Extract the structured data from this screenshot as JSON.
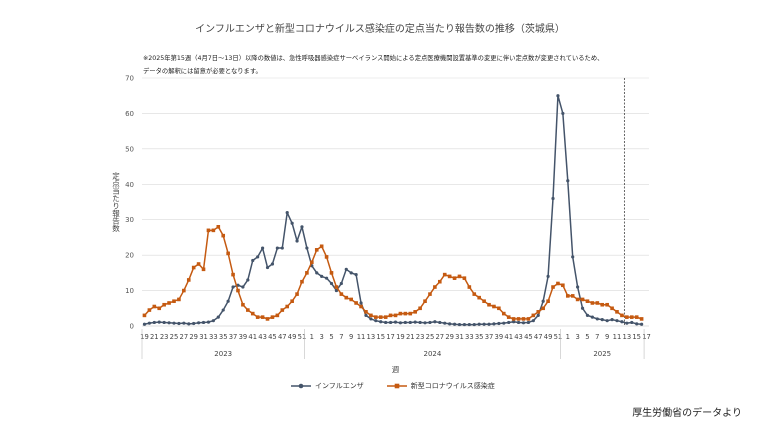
{
  "title": "インフルエンザと新型コロナウイルス感染症の定点当たり報告数の推移（茨城県）",
  "notes": [
    "※2025年第15週（4月7日〜13日）以降の数値は、急性呼吸器感染症サーベイランス開始による定点医療機関設置基準の変更に伴い定点数が変更されているため、",
    "データの解釈には留意が必要となります。"
  ],
  "source": "厚生労働省のデータより",
  "colors": {
    "influenza": "#44546a",
    "covid": "#c55a11",
    "grid": "#d9d9d9",
    "marker_line": "#404040"
  },
  "chart_data": {
    "type": "line",
    "title": "インフルエンザと新型コロナウイルス感染症の定点当たり報告数の推移（茨城県）",
    "xlabel": "週",
    "ylabel": "定点当たり報告数",
    "ylim": [
      0,
      70
    ],
    "yticks": [
      0,
      10,
      20,
      30,
      40,
      50,
      60,
      70
    ],
    "grid": true,
    "legend_position": "bottom",
    "year_labels": [
      {
        "label": "2023",
        "start": 0,
        "end": 32
      },
      {
        "label": "2024",
        "start": 33,
        "end": 84
      },
      {
        "label": "2025",
        "start": 85,
        "end": 101
      }
    ],
    "vertical_marker_week_index": 98,
    "weeks": [
      19,
      20,
      21,
      22,
      23,
      24,
      25,
      26,
      27,
      28,
      29,
      30,
      31,
      32,
      33,
      34,
      35,
      36,
      37,
      38,
      39,
      40,
      41,
      42,
      43,
      44,
      45,
      46,
      47,
      48,
      49,
      50,
      51,
      52,
      1,
      2,
      3,
      4,
      5,
      6,
      7,
      8,
      9,
      10,
      11,
      12,
      13,
      14,
      15,
      16,
      17,
      18,
      19,
      20,
      21,
      22,
      23,
      24,
      25,
      26,
      27,
      28,
      29,
      30,
      31,
      32,
      33,
      34,
      35,
      36,
      37,
      38,
      39,
      40,
      41,
      42,
      43,
      44,
      45,
      46,
      47,
      48,
      49,
      50,
      51,
      52,
      1,
      2,
      3,
      4,
      5,
      6,
      7,
      8,
      9,
      10,
      11,
      12,
      13,
      14,
      15,
      16,
      17
    ],
    "tick_labels": [
      "19",
      "21",
      "23",
      "25",
      "27",
      "29",
      "31",
      "33",
      "35",
      "37",
      "39",
      "41",
      "43",
      "45",
      "47",
      "49",
      "51",
      "1",
      "3",
      "5",
      "7",
      "9",
      "11",
      "13",
      "15",
      "17",
      "19",
      "21",
      "23",
      "25",
      "27",
      "29",
      "31",
      "33",
      "35",
      "37",
      "39",
      "41",
      "43",
      "45",
      "47",
      "49",
      "51",
      "1",
      "3",
      "5",
      "7",
      "9",
      "11",
      "13",
      "15",
      "17"
    ],
    "series": [
      {
        "name": "インフルエンザ",
        "color": "#44546a",
        "marker": "circle",
        "values": [
          0.5,
          0.8,
          1.0,
          1.1,
          1.0,
          0.9,
          0.8,
          0.7,
          0.8,
          0.6,
          0.7,
          0.9,
          1.0,
          1.1,
          1.5,
          2.5,
          4.5,
          7,
          11,
          11.5,
          11,
          13,
          18.5,
          19.5,
          22,
          16.5,
          17.5,
          22,
          22,
          32,
          29,
          24,
          28,
          22,
          17,
          15,
          14,
          13.5,
          12,
          10,
          12,
          16,
          15,
          14.5,
          6.5,
          3,
          2,
          1.5,
          1.2,
          1.0,
          1.0,
          1.1,
          0.9,
          1.0,
          1.0,
          1.1,
          1.0,
          0.9,
          1.0,
          1.2,
          1.0,
          0.8,
          0.6,
          0.5,
          0.4,
          0.4,
          0.4,
          0.4,
          0.5,
          0.5,
          0.5,
          0.6,
          0.7,
          0.8,
          1.0,
          1.2,
          1.0,
          0.9,
          1.0,
          1.5,
          3,
          7,
          14,
          36,
          65,
          60,
          41,
          19.5,
          11,
          5,
          3,
          2.5,
          2,
          1.8,
          1.5,
          1.8,
          1.5,
          1.2,
          0.8,
          1.0,
          0.6,
          0.5
        ]
      },
      {
        "name": "新型コロナウイルス感染症",
        "color": "#c55a11",
        "marker": "square",
        "values": [
          3.0,
          4.5,
          5.5,
          5.0,
          6.0,
          6.5,
          7.0,
          7.5,
          10,
          13,
          16.5,
          17.5,
          16,
          27,
          27,
          28,
          25.5,
          20.5,
          14.5,
          10,
          6,
          4.5,
          3.5,
          2.5,
          2.5,
          2.0,
          2.5,
          3,
          4.5,
          5.5,
          7,
          9,
          12.5,
          15,
          18,
          21.5,
          22.5,
          19.5,
          15,
          11,
          9,
          8,
          7.5,
          6.5,
          5.5,
          4.0,
          3.0,
          2.5,
          2.5,
          2.5,
          3,
          3,
          3.5,
          3.5,
          3.5,
          4,
          5,
          7,
          9,
          11,
          12.5,
          14.5,
          14,
          13.5,
          14,
          13.5,
          11,
          9,
          8,
          7,
          6,
          5.5,
          5,
          3.5,
          2.5,
          2.0,
          2.0,
          2.0,
          2.0,
          3,
          4,
          5,
          7,
          11,
          12,
          11.5,
          8.5,
          8.5,
          7.5,
          7.5,
          7.0,
          6.5,
          6.5,
          6,
          6,
          5,
          4,
          3,
          2.5,
          2.5,
          2.5,
          2.0
        ]
      }
    ]
  }
}
